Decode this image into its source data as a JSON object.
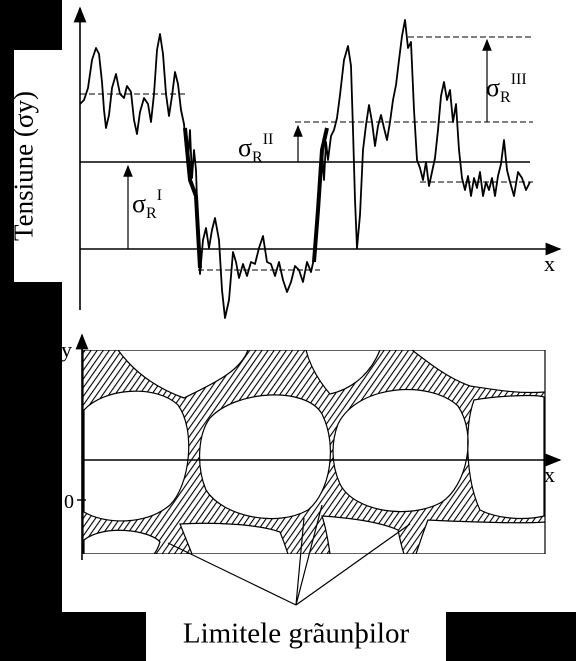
{
  "labels": {
    "stress_axis": "Tensiune (σy)",
    "x_axis_top": "x",
    "x_axis_bottom": "x",
    "y_axis_bottom": "y",
    "origin": "0",
    "sigma_symbol": "σ",
    "sub_R": "R",
    "sup_I": "I",
    "sup_II": "II",
    "sup_III": "III",
    "grain_boundaries": "Limitele grãunþilor"
  },
  "colors": {
    "background": "#000000",
    "panel": "#ffffff",
    "ink": "#000000"
  }
}
